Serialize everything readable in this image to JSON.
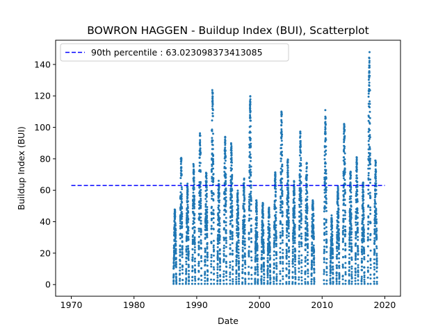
{
  "chart_data": {
    "type": "scatter",
    "title": "BOWRON HAGGEN - Buildup Index (BUI), Scatterplot",
    "xlabel": "Date",
    "ylabel": "Buildup Index (BUI)",
    "xlim": [
      1967.5,
      2022.5
    ],
    "ylim": [
      -7.4,
      155.4
    ],
    "xticks": [
      1970,
      1980,
      1990,
      2000,
      2010,
      2020
    ],
    "yticks": [
      0,
      20,
      40,
      60,
      80,
      100,
      120,
      140
    ],
    "grid": false,
    "legend": {
      "placement": "top-left",
      "entries": [
        "90th percentile : 63.023098373413085"
      ]
    },
    "point_color": "#1f77b4",
    "reference_line": {
      "name": "90th percentile : 63.023098373413085",
      "y": 63.023098373413085,
      "x_range": [
        1970,
        2020
      ],
      "color": "#0000ff",
      "style": "dashed"
    },
    "season_peaks": [
      {
        "year": 1986,
        "peak": 49
      },
      {
        "year": 1987,
        "peak": 81
      },
      {
        "year": 1988,
        "peak": 65
      },
      {
        "year": 1989,
        "peak": 77
      },
      {
        "year": 1990,
        "peak": 97
      },
      {
        "year": 1991,
        "peak": 72
      },
      {
        "year": 1992,
        "peak": 125
      },
      {
        "year": 1993,
        "peak": 66
      },
      {
        "year": 1994,
        "peak": 94
      },
      {
        "year": 1995,
        "peak": 91
      },
      {
        "year": 1996,
        "peak": 60
      },
      {
        "year": 1997,
        "peak": 68
      },
      {
        "year": 1998,
        "peak": 121
      },
      {
        "year": 1999,
        "peak": 54
      },
      {
        "year": 2000,
        "peak": 52
      },
      {
        "year": 2001,
        "peak": 50
      },
      {
        "year": 2002,
        "peak": 72
      },
      {
        "year": 2003,
        "peak": 111
      },
      {
        "year": 2004,
        "peak": 80
      },
      {
        "year": 2005,
        "peak": 66
      },
      {
        "year": 2006,
        "peak": 98
      },
      {
        "year": 2007,
        "peak": 78
      },
      {
        "year": 2008,
        "peak": 55
      },
      {
        "year": 2010,
        "peak": 112
      },
      {
        "year": 2011,
        "peak": 44
      },
      {
        "year": 2012,
        "peak": 63
      },
      {
        "year": 2013,
        "peak": 106
      },
      {
        "year": 2014,
        "peak": 72
      },
      {
        "year": 2015,
        "peak": 81
      },
      {
        "year": 2016,
        "peak": 65
      },
      {
        "year": 2017,
        "peak": 148
      },
      {
        "year": 2018,
        "peak": 79
      }
    ]
  }
}
